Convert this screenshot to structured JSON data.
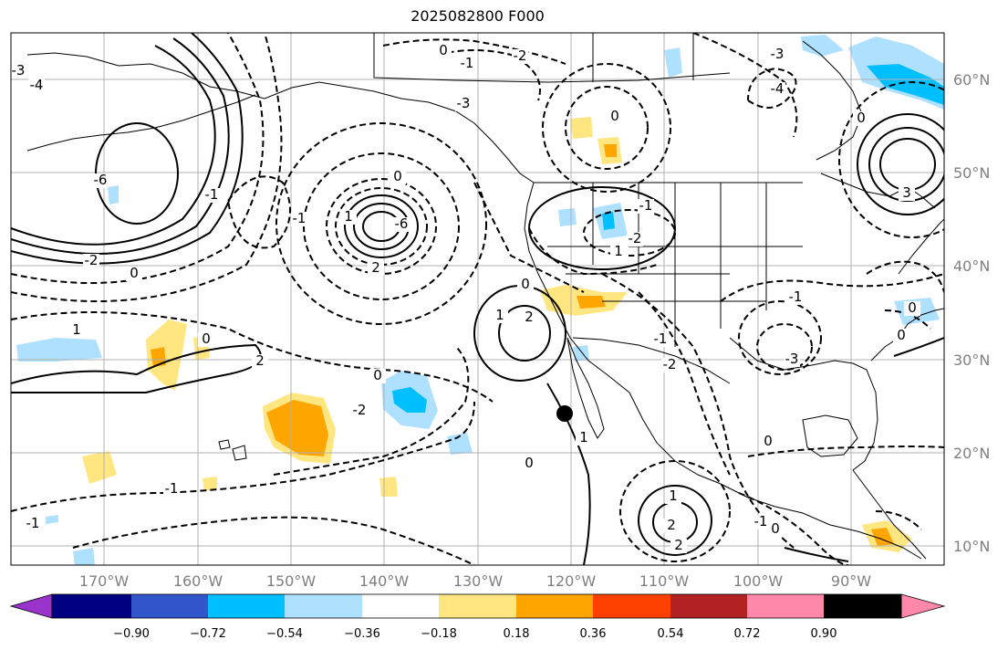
{
  "title": "2025082800 F000",
  "lat_labels": [
    "60°N",
    "50°N",
    "40°N",
    "30°N",
    "20°N",
    "10°N"
  ],
  "lon_labels": [
    "170°W",
    "160°W",
    "150°W",
    "140°W",
    "130°W",
    "120°W",
    "110°W",
    "100°W",
    "90°W"
  ],
  "colorbar": {
    "ticks": [
      "−0.90",
      "−0.72",
      "−0.54",
      "−0.36",
      "−0.18",
      "0.18",
      "0.36",
      "0.54",
      "0.72",
      "0.90"
    ],
    "colors": [
      "#9933cc",
      "#000080",
      "#3355cc",
      "#00bfff",
      "#aee0ff",
      "#ffffff",
      "#ffe680",
      "#ffa500",
      "#ff4000",
      "#b22222",
      "#ff88aa"
    ]
  },
  "contour_labels": [
    {
      "text": "0"
    },
    {
      "text": "-1"
    },
    {
      "text": "-2"
    },
    {
      "text": "-3"
    },
    {
      "text": "-3"
    },
    {
      "text": "-4"
    },
    {
      "text": "-6"
    },
    {
      "text": "-6"
    },
    {
      "text": "-2"
    },
    {
      "text": "-1"
    },
    {
      "text": "0"
    },
    {
      "text": "1"
    },
    {
      "text": "-1"
    },
    {
      "text": "0"
    },
    {
      "text": "-2"
    },
    {
      "text": "-1"
    },
    {
      "text": "0"
    },
    {
      "text": "2"
    },
    {
      "text": "-1"
    },
    {
      "text": "0"
    },
    {
      "text": "1"
    },
    {
      "text": "2"
    },
    {
      "text": "1"
    },
    {
      "text": "0"
    },
    {
      "text": "-1"
    },
    {
      "text": "-2"
    },
    {
      "text": "-3"
    },
    {
      "text": "-4"
    },
    {
      "text": "0"
    },
    {
      "text": "3"
    },
    {
      "text": "2"
    },
    {
      "text": "0"
    },
    {
      "text": "-1"
    },
    {
      "text": "-2"
    },
    {
      "text": "1"
    },
    {
      "text": "0"
    },
    {
      "text": "2"
    },
    {
      "text": "-1"
    },
    {
      "text": "1"
    },
    {
      "text": "2"
    },
    {
      "text": "0"
    },
    {
      "text": "-1"
    },
    {
      "text": "0"
    },
    {
      "text": "1"
    },
    {
      "text": "0"
    },
    {
      "text": "-3"
    },
    {
      "text": "-1"
    },
    {
      "text": "0"
    }
  ]
}
